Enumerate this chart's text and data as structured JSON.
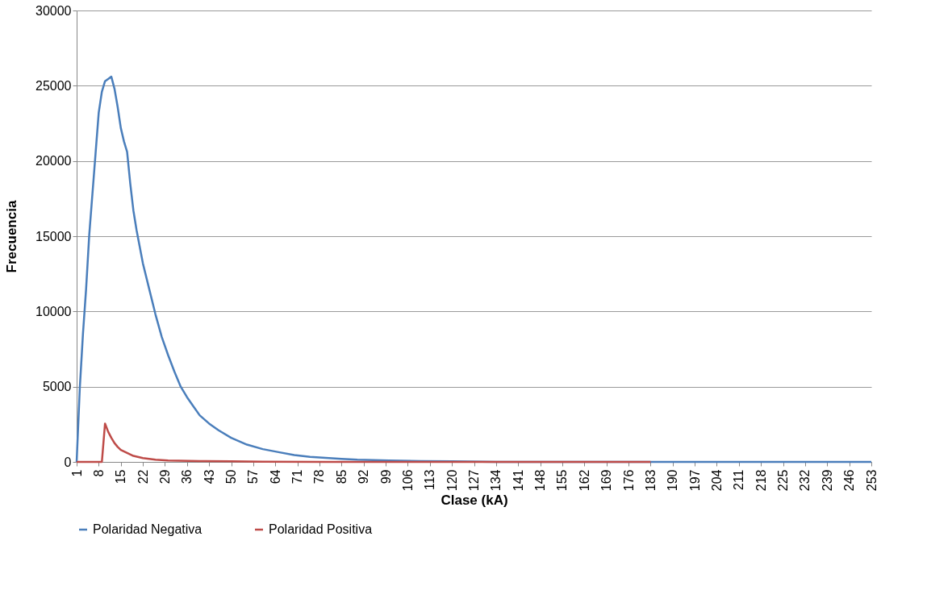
{
  "chart_data": {
    "type": "line",
    "xlabel": "Clase (kA)",
    "ylabel": "Frecuencia",
    "xlim": [
      1,
      253
    ],
    "xticks": [
      1,
      8,
      15,
      22,
      29,
      36,
      43,
      50,
      57,
      64,
      71,
      78,
      85,
      92,
      99,
      106,
      113,
      120,
      127,
      134,
      141,
      148,
      155,
      162,
      169,
      176,
      183,
      190,
      197,
      204,
      211,
      218,
      225,
      232,
      239,
      246,
      253
    ],
    "ylim": [
      0,
      30000
    ],
    "yticks": [
      0,
      5000,
      10000,
      15000,
      20000,
      25000,
      30000
    ],
    "grid": "y",
    "legend": "bottom",
    "marker": "none",
    "line_style": "solid",
    "series": [
      {
        "name": "Polaridad Negativa",
        "color": "#4a7ebb",
        "x": [
          1,
          2,
          3,
          4,
          5,
          6,
          7,
          8,
          9,
          10,
          11,
          12,
          13,
          14,
          15,
          16,
          17,
          18,
          19,
          20,
          21,
          22,
          24,
          26,
          28,
          30,
          32,
          34,
          36,
          38,
          40,
          43,
          46,
          50,
          55,
          60,
          65,
          70,
          75,
          80,
          85,
          90,
          100,
          110,
          120,
          134,
          150,
          183,
          200,
          253
        ],
        "values": [
          0,
          4900,
          8500,
          11500,
          15100,
          17800,
          20500,
          23200,
          24600,
          25300,
          25450,
          25600,
          24800,
          23600,
          22200,
          21300,
          20600,
          18500,
          16700,
          15400,
          14300,
          13200,
          11500,
          9800,
          8300,
          7100,
          6000,
          5000,
          4300,
          3700,
          3100,
          2550,
          2100,
          1600,
          1150,
          850,
          650,
          450,
          340,
          270,
          200,
          150,
          100,
          60,
          40,
          0,
          0,
          0,
          0,
          0
        ]
      },
      {
        "name": "Polaridad Positiva",
        "color": "#be4b48",
        "x": [
          1,
          9,
          10,
          11,
          12,
          13,
          14,
          15,
          17,
          19,
          22,
          26,
          30,
          40,
          50,
          60,
          80,
          100,
          183
        ],
        "values": [
          0,
          0,
          2550,
          2000,
          1600,
          1250,
          1000,
          800,
          600,
          400,
          250,
          150,
          100,
          60,
          40,
          20,
          0,
          0,
          0
        ]
      }
    ]
  }
}
